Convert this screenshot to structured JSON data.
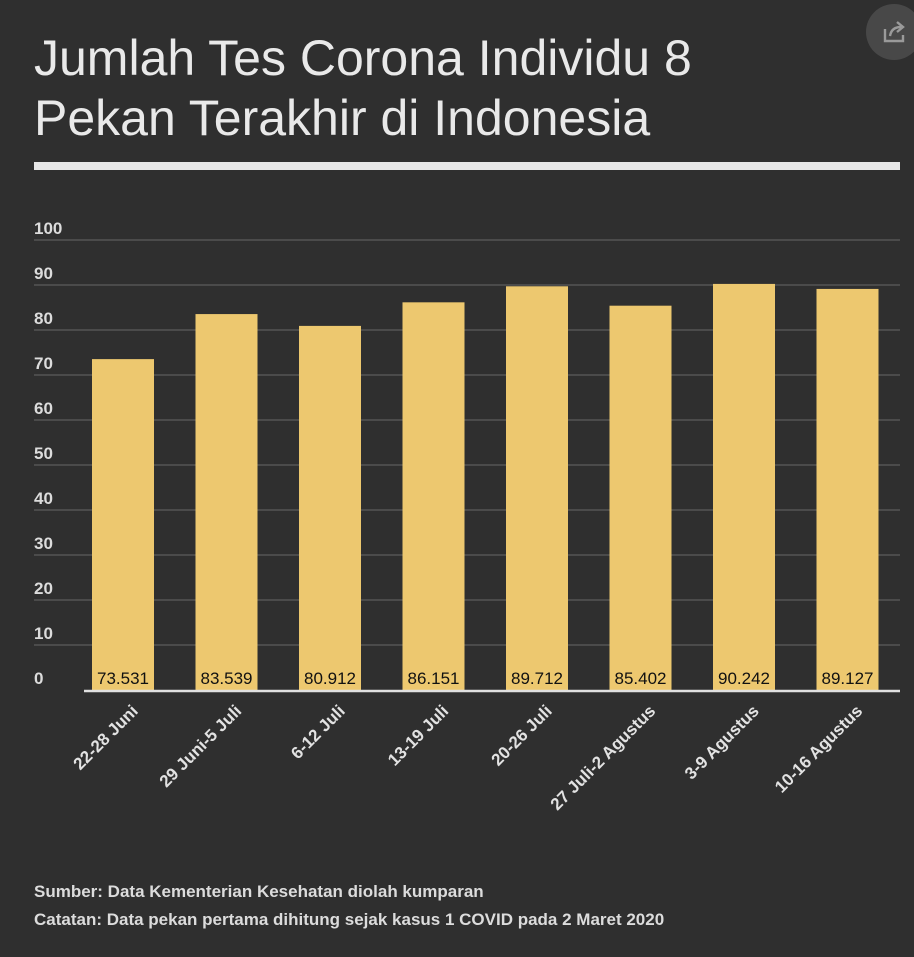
{
  "title": "Jumlah Tes Corona Individu 8 Pekan Terakhir di Indonesia",
  "icons": {
    "share": "share-icon"
  },
  "colors": {
    "background": "#2f2f2f",
    "bar": "#edc86f",
    "grid": "#555555",
    "axis": "#e0e0e0",
    "text": "#e6e6e6"
  },
  "footer": {
    "source": "Sumber: Data Kementerian Kesehatan diolah kumparan",
    "note": "Catatan: Data pekan pertama dihitung sejak kasus 1 COVID pada 2 Maret 2020"
  },
  "chart_data": {
    "type": "bar",
    "title": "Jumlah Tes Corona Individu 8 Pekan Terakhir di Indonesia",
    "xlabel": "",
    "ylabel": "",
    "categories": [
      "22-28 Juni",
      "29 Juni-5 Juli",
      "6-12 Juli",
      "13-19 Juli",
      "20-26 Juli",
      "27 Juli-2 Agustus",
      "3-9 Agustus",
      "10-16 Agustus"
    ],
    "values": [
      73.531,
      83.539,
      80.912,
      86.151,
      89.712,
      85.402,
      90.242,
      89.127
    ],
    "value_labels": [
      "73.531",
      "83.539",
      "80.912",
      "86.151",
      "89.712",
      "85.402",
      "90.242",
      "89.127"
    ],
    "ylim": [
      0,
      100
    ],
    "yticks": [
      0,
      10,
      20,
      30,
      40,
      50,
      60,
      70,
      80,
      90,
      100
    ],
    "grid": true,
    "legend": "none"
  }
}
